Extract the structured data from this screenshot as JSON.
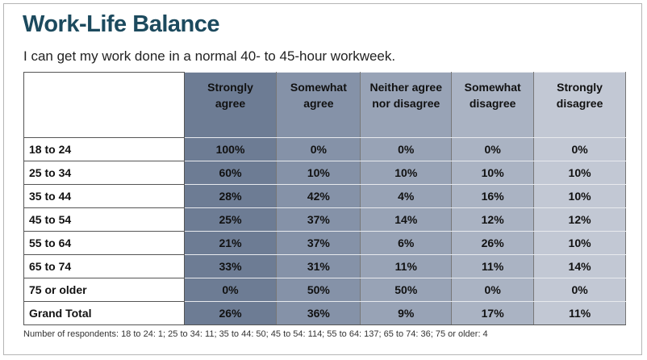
{
  "header": {
    "title": "Work-Life Balance",
    "subtitle": "I can get my work done in a normal 40- to 45-hour workweek."
  },
  "table": {
    "columns": [
      "Strongly agree",
      "Somewhat agree",
      "Neither agree nor disagree",
      "Somewhat disagree",
      "Strongly disagree"
    ],
    "rows": [
      [
        "18 to 24",
        "100%",
        "0%",
        "0%",
        "0%",
        "0%"
      ],
      [
        "25 to 34",
        "60%",
        "10%",
        "10%",
        "10%",
        "10%"
      ],
      [
        "35 to 44",
        "28%",
        "42%",
        "4%",
        "16%",
        "10%"
      ],
      [
        "45 to 54",
        "25%",
        "37%",
        "14%",
        "12%",
        "12%"
      ],
      [
        "55 to 64",
        "21%",
        "37%",
        "6%",
        "26%",
        "10%"
      ],
      [
        "65 to 74",
        "33%",
        "31%",
        "11%",
        "11%",
        "14%"
      ],
      [
        "75 or older",
        "0%",
        "50%",
        "50%",
        "0%",
        "0%"
      ],
      [
        "Grand Total",
        "26%",
        "36%",
        "9%",
        "17%",
        "11%"
      ]
    ]
  },
  "footnote": "Number of respondents: 18 to 24: 1; 25 to 34: 11; 35 to 44: 50; 45 to 54: 114; 55 to 64: 137; 65 to 74: 36; 75 or older: 4"
}
